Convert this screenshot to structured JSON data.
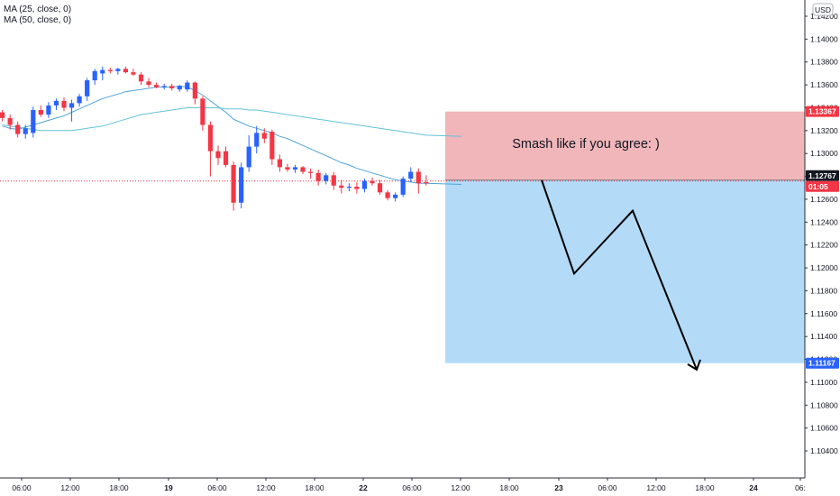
{
  "legend": {
    "ma1": "MA (25, close, 0)",
    "ma2": "MA (50, close, 0)"
  },
  "currency_button": "USD",
  "colors": {
    "up": "#2962ff",
    "down": "#f23645",
    "ma_short": "#4fa3d9",
    "ma_long": "#63c3d8",
    "stop_zone": "#f0b6b9",
    "target_zone": "#b3dbf7",
    "tag_red": "#f23645",
    "tag_blue": "#2962ff",
    "tag_dark": "#131722"
  },
  "chart_data": {
    "type": "candlestick",
    "y_axis": {
      "min": 1.103,
      "max": 1.143,
      "ticks": [
        "1.14200",
        "1.14000",
        "1.13800",
        "1.13600",
        "1.13400",
        "1.13200",
        "1.13000",
        "1.12800",
        "1.12600",
        "1.12400",
        "1.12200",
        "1.12000",
        "1.11800",
        "1.11600",
        "1.11400",
        "1.11200",
        "1.11000",
        "1.10800",
        "1.10600",
        "1.10400"
      ]
    },
    "x_axis": {
      "ticks": [
        "06:00",
        "12:00",
        "18:00",
        "19",
        "06:00",
        "12:00",
        "18:00",
        "22",
        "06:00",
        "12:00",
        "18:00",
        "23",
        "06:00",
        "12:00",
        "18:00",
        "24",
        "06:"
      ],
      "bold_ticks": [
        "19",
        "22",
        "23",
        "24"
      ]
    },
    "candles": [
      {
        "o": 1.1336,
        "h": 1.1338,
        "l": 1.1328,
        "c": 1.1331
      },
      {
        "o": 1.1331,
        "h": 1.1334,
        "l": 1.1321,
        "c": 1.1325
      },
      {
        "o": 1.1325,
        "h": 1.1328,
        "l": 1.1314,
        "c": 1.1317
      },
      {
        "o": 1.1317,
        "h": 1.1325,
        "l": 1.1313,
        "c": 1.1322
      },
      {
        "o": 1.1318,
        "h": 1.1341,
        "l": 1.1314,
        "c": 1.1338
      },
      {
        "o": 1.1338,
        "h": 1.1342,
        "l": 1.1332,
        "c": 1.1334
      },
      {
        "o": 1.1334,
        "h": 1.1345,
        "l": 1.1331,
        "c": 1.1342
      },
      {
        "o": 1.1342,
        "h": 1.1348,
        "l": 1.1338,
        "c": 1.1346
      },
      {
        "o": 1.1346,
        "h": 1.1349,
        "l": 1.1337,
        "c": 1.134
      },
      {
        "o": 1.134,
        "h": 1.1347,
        "l": 1.1328,
        "c": 1.1344
      },
      {
        "o": 1.1344,
        "h": 1.1352,
        "l": 1.1341,
        "c": 1.135
      },
      {
        "o": 1.135,
        "h": 1.1366,
        "l": 1.1346,
        "c": 1.1364
      },
      {
        "o": 1.1364,
        "h": 1.1374,
        "l": 1.136,
        "c": 1.1372
      },
      {
        "o": 1.137,
        "h": 1.1376,
        "l": 1.1364,
        "c": 1.1373
      },
      {
        "o": 1.1373,
        "h": 1.1375,
        "l": 1.137,
        "c": 1.1372
      },
      {
        "o": 1.1372,
        "h": 1.1375,
        "l": 1.1369,
        "c": 1.1374
      },
      {
        "o": 1.1374,
        "h": 1.1376,
        "l": 1.137,
        "c": 1.1371
      },
      {
        "o": 1.1371,
        "h": 1.1374,
        "l": 1.1368,
        "c": 1.1369
      },
      {
        "o": 1.1369,
        "h": 1.1371,
        "l": 1.136,
        "c": 1.1363
      },
      {
        "o": 1.1363,
        "h": 1.1366,
        "l": 1.1358,
        "c": 1.136
      },
      {
        "o": 1.136,
        "h": 1.1362,
        "l": 1.1357,
        "c": 1.1358
      },
      {
        "o": 1.1358,
        "h": 1.1361,
        "l": 1.1356,
        "c": 1.1359
      },
      {
        "o": 1.1359,
        "h": 1.1361,
        "l": 1.1355,
        "c": 1.1357
      },
      {
        "o": 1.1356,
        "h": 1.136,
        "l": 1.1354,
        "c": 1.1359
      },
      {
        "o": 1.1356,
        "h": 1.1364,
        "l": 1.1354,
        "c": 1.1362
      },
      {
        "o": 1.1362,
        "h": 1.1363,
        "l": 1.1343,
        "c": 1.1348
      },
      {
        "o": 1.1348,
        "h": 1.135,
        "l": 1.132,
        "c": 1.1325
      },
      {
        "o": 1.1325,
        "h": 1.1328,
        "l": 1.128,
        "c": 1.1302
      },
      {
        "o": 1.1302,
        "h": 1.1307,
        "l": 1.129,
        "c": 1.1296
      },
      {
        "o": 1.1302,
        "h": 1.1306,
        "l": 1.1288,
        "c": 1.129
      },
      {
        "o": 1.129,
        "h": 1.1293,
        "l": 1.125,
        "c": 1.1257
      },
      {
        "o": 1.1257,
        "h": 1.1292,
        "l": 1.1252,
        "c": 1.1288
      },
      {
        "o": 1.1288,
        "h": 1.1316,
        "l": 1.1284,
        "c": 1.1306
      },
      {
        "o": 1.1306,
        "h": 1.1324,
        "l": 1.13,
        "c": 1.1318
      },
      {
        "o": 1.1318,
        "h": 1.1322,
        "l": 1.1309,
        "c": 1.1313
      },
      {
        "o": 1.1319,
        "h": 1.1321,
        "l": 1.129,
        "c": 1.1295
      },
      {
        "o": 1.1295,
        "h": 1.1299,
        "l": 1.1284,
        "c": 1.1288
      },
      {
        "o": 1.1288,
        "h": 1.1291,
        "l": 1.1284,
        "c": 1.1286
      },
      {
        "o": 1.1286,
        "h": 1.129,
        "l": 1.1283,
        "c": 1.1288
      },
      {
        "o": 1.1288,
        "h": 1.1289,
        "l": 1.1282,
        "c": 1.1284
      },
      {
        "o": 1.1284,
        "h": 1.1287,
        "l": 1.1278,
        "c": 1.1283
      },
      {
        "o": 1.1283,
        "h": 1.1286,
        "l": 1.1272,
        "c": 1.1276
      },
      {
        "o": 1.1276,
        "h": 1.1283,
        "l": 1.1273,
        "c": 1.1281
      },
      {
        "o": 1.1281,
        "h": 1.1284,
        "l": 1.1268,
        "c": 1.1272
      },
      {
        "o": 1.1272,
        "h": 1.1277,
        "l": 1.1265,
        "c": 1.127
      },
      {
        "o": 1.127,
        "h": 1.1274,
        "l": 1.1267,
        "c": 1.1271
      },
      {
        "o": 1.1271,
        "h": 1.1275,
        "l": 1.1265,
        "c": 1.1269
      },
      {
        "o": 1.1269,
        "h": 1.1278,
        "l": 1.1266,
        "c": 1.1276
      },
      {
        "o": 1.1276,
        "h": 1.1279,
        "l": 1.1272,
        "c": 1.1274
      },
      {
        "o": 1.1274,
        "h": 1.1277,
        "l": 1.1264,
        "c": 1.1266
      },
      {
        "o": 1.1266,
        "h": 1.1268,
        "l": 1.1259,
        "c": 1.1261
      },
      {
        "o": 1.1261,
        "h": 1.1266,
        "l": 1.1258,
        "c": 1.1264
      },
      {
        "o": 1.1264,
        "h": 1.128,
        "l": 1.1262,
        "c": 1.1278
      },
      {
        "o": 1.1278,
        "h": 1.1288,
        "l": 1.1275,
        "c": 1.1284
      },
      {
        "o": 1.1284,
        "h": 1.1287,
        "l": 1.1265,
        "c": 1.1274
      },
      {
        "o": 1.1275,
        "h": 1.1281,
        "l": 1.1272,
        "c": 1.1274
      }
    ],
    "ma25": [
      1.1324,
      1.1322,
      1.1321,
      1.1323,
      1.1325,
      1.1327,
      1.1329,
      1.1331,
      1.1333,
      1.1336,
      1.1339,
      1.1342,
      1.1345,
      1.1348,
      1.135,
      1.1352,
      1.1354,
      1.1355,
      1.1356,
      1.1357,
      1.1358,
      1.1358,
      1.1358,
      1.1359,
      1.1358,
      1.1355,
      1.1351,
      1.1346,
      1.1341,
      1.1336,
      1.133,
      1.1327,
      1.1324,
      1.1322,
      1.132,
      1.1318,
      1.1315,
      1.1313,
      1.131,
      1.1307,
      1.1304,
      1.1301,
      1.1298,
      1.1295,
      1.1292,
      1.129,
      1.1287,
      1.1285,
      1.1283,
      1.1281,
      1.1279,
      1.1277,
      1.1276,
      1.1275,
      1.1274,
      1.1274
    ],
    "ma50": [
      1.1325,
      1.1324,
      1.1323,
      1.1322,
      1.1321,
      1.132,
      1.132,
      1.132,
      1.132,
      1.132,
      1.1321,
      1.1322,
      1.1323,
      1.1324,
      1.1326,
      1.1328,
      1.133,
      1.1332,
      1.1334,
      1.1335,
      1.1336,
      1.1337,
      1.1338,
      1.1339,
      1.134,
      1.134,
      1.134,
      1.134,
      1.134,
      1.1339,
      1.1339,
      1.1339,
      1.1338,
      1.1338,
      1.1337,
      1.1336,
      1.1335,
      1.1334,
      1.1333,
      1.1332,
      1.1331,
      1.133,
      1.1329,
      1.1328,
      1.1327,
      1.1326,
      1.1325,
      1.1324,
      1.1323,
      1.1322,
      1.1321,
      1.132,
      1.1319,
      1.1318,
      1.1317,
      1.1316
    ],
    "position": {
      "entry": 1.12767,
      "stop": 1.13367,
      "target": 1.11167,
      "label": "Smash like if you agree: )"
    },
    "path_prices": [
      1.12767,
      1.1195,
      1.125,
      1.1115
    ],
    "price_tags": [
      {
        "name": "stop",
        "label": "1.13367",
        "value": 1.13367,
        "color": "#f23645"
      },
      {
        "name": "current",
        "label": "1.12767",
        "value": 1.12767,
        "color": "#131722"
      },
      {
        "name": "countdown",
        "label": "01:05",
        "value": 1.12767,
        "color": "#f23645"
      },
      {
        "name": "target",
        "label": "1.11167",
        "value": 1.11167,
        "color": "#2962ff"
      }
    ]
  }
}
